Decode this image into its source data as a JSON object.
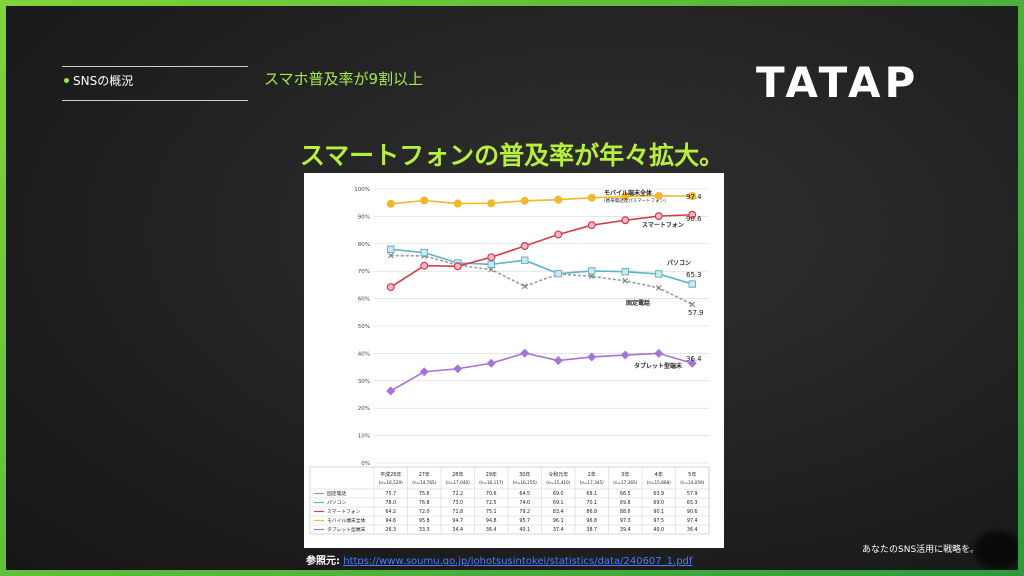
{
  "header": {
    "section_label": "SNSの概況",
    "subtitle": "スマホ普及率が9割以上",
    "logo": "TATAP"
  },
  "headline": "スマートフォンの普及率が年々拡大。",
  "source": {
    "label": "参照元:",
    "url": "https://www.soumu.go.jp/johotsusintokei/statistics/data/240607_1.pdf"
  },
  "tagline": "あなたのSNS活用に戦略を。",
  "chart_data": {
    "type": "line",
    "categories": [
      "平成26年",
      "27年",
      "28年",
      "29年",
      "30年",
      "令和元年",
      "2年",
      "3年",
      "4年",
      "5年"
    ],
    "category_n": [
      "(n=16,529)",
      "(n=14,765)",
      "(n=17,040)",
      "(n=16,117)",
      "(n=16,255)",
      "(n=15,410)",
      "(n=17,345)",
      "(n=17,365)",
      "(n=15,868)",
      "(n=14,059)"
    ],
    "y_ticks": [
      "0%",
      "10%",
      "20%",
      "30%",
      "40%",
      "50%",
      "60%",
      "70%",
      "80%",
      "90%",
      "100%"
    ],
    "ylim": [
      0,
      100
    ],
    "series": [
      {
        "name": "固定電話",
        "color": "#9a9a9a",
        "marker": "x",
        "values": [
          75.7,
          75.6,
          72.2,
          70.6,
          64.5,
          69.0,
          68.1,
          66.5,
          63.9,
          57.9
        ],
        "end_label": "57.9",
        "chart_label": "固定電話"
      },
      {
        "name": "パソコン",
        "color": "#5fb4c6",
        "marker": "square",
        "values": [
          78.0,
          76.8,
          73.0,
          72.5,
          74.0,
          69.1,
          70.1,
          69.8,
          69.0,
          65.3
        ],
        "end_label": "65.3",
        "chart_label": "パソコン"
      },
      {
        "name": "スマートフォン",
        "color": "#d33a4c",
        "marker": "circle",
        "values": [
          64.2,
          72.0,
          71.8,
          75.1,
          79.2,
          83.4,
          86.8,
          88.6,
          90.1,
          90.6
        ],
        "end_label": "90.6",
        "chart_label": "スマートフォン"
      },
      {
        "name": "モバイル端末全体",
        "color": "#f0b82c",
        "marker": "circle",
        "values": [
          94.6,
          95.8,
          94.7,
          94.8,
          95.7,
          96.1,
          96.8,
          97.3,
          97.5,
          97.4
        ],
        "end_label": "97.4",
        "chart_label": "モバイル端末全体",
        "chart_sublabel": "(携帯電話及びスマートフォン)"
      },
      {
        "name": "タブレット型端末",
        "color": "#a574d6",
        "marker": "diamond",
        "values": [
          26.3,
          33.3,
          34.4,
          36.4,
          40.1,
          37.4,
          38.7,
          39.4,
          40.0,
          36.4
        ],
        "end_label": "36.4",
        "chart_label": "タブレット型端末"
      }
    ]
  }
}
